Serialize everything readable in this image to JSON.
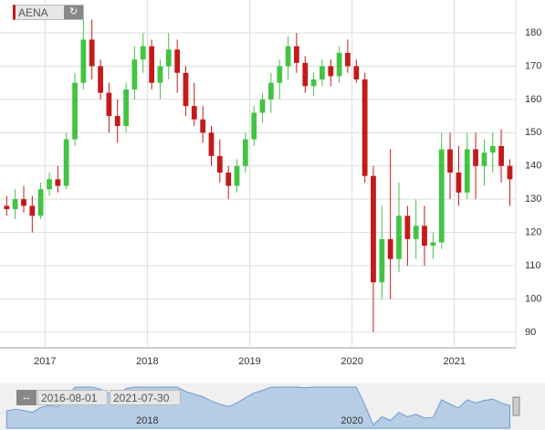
{
  "app": {
    "symbol": "AENA"
  },
  "chart_data": {
    "type": "candlestick",
    "x": [
      2016.625,
      2016.708,
      2016.792,
      2016.875,
      2016.958,
      2017.042,
      2017.125,
      2017.208,
      2017.292,
      2017.375,
      2017.458,
      2017.542,
      2017.625,
      2017.708,
      2017.792,
      2017.875,
      2017.958,
      2018.042,
      2018.125,
      2018.208,
      2018.292,
      2018.375,
      2018.458,
      2018.542,
      2018.625,
      2018.708,
      2018.792,
      2018.875,
      2018.958,
      2019.042,
      2019.125,
      2019.208,
      2019.292,
      2019.375,
      2019.458,
      2019.542,
      2019.625,
      2019.708,
      2019.792,
      2019.875,
      2019.958,
      2020.042,
      2020.125,
      2020.208,
      2020.292,
      2020.375,
      2020.458,
      2020.542,
      2020.625,
      2020.708,
      2020.792,
      2020.875,
      2020.958,
      2021.042,
      2021.125,
      2021.208,
      2021.292,
      2021.375,
      2021.458,
      2021.542
    ],
    "open": [
      128,
      127,
      130,
      128,
      125,
      133,
      136,
      134,
      148,
      165,
      178,
      170,
      162,
      155,
      152,
      163,
      172,
      176,
      165,
      170,
      175,
      168,
      158,
      154,
      150,
      143,
      138,
      134,
      140,
      148,
      156,
      160,
      165,
      170,
      176,
      171,
      164,
      166,
      170,
      167,
      174,
      170,
      166,
      137,
      105,
      118,
      112,
      125,
      118,
      122,
      116,
      117,
      145,
      138,
      132,
      145,
      140,
      144,
      146,
      140
    ],
    "high": [
      131,
      133,
      134,
      131,
      135,
      138,
      140,
      150,
      168,
      185,
      184,
      172,
      165,
      160,
      165,
      176,
      180,
      178,
      172,
      180,
      178,
      170,
      165,
      158,
      152,
      148,
      140,
      142,
      150,
      158,
      162,
      168,
      172,
      179,
      180,
      173,
      168,
      172,
      172,
      176,
      178,
      172,
      168,
      140,
      128,
      145,
      135,
      128,
      130,
      128,
      120,
      150,
      150,
      146,
      150,
      150,
      148,
      150,
      151,
      142
    ],
    "low": [
      125,
      124,
      126,
      120,
      124,
      131,
      132,
      133,
      146,
      163,
      166,
      160,
      150,
      147,
      150,
      160,
      168,
      163,
      160,
      166,
      162,
      155,
      152,
      147,
      140,
      135,
      130,
      132,
      138,
      146,
      153,
      156,
      160,
      166,
      168,
      162,
      161,
      164,
      164,
      165,
      168,
      165,
      135,
      90,
      100,
      100,
      108,
      110,
      112,
      110,
      112,
      115,
      130,
      128,
      130,
      130,
      134,
      138,
      135,
      128
    ],
    "close": [
      127,
      130,
      128,
      125,
      133,
      136,
      134,
      148,
      165,
      178,
      170,
      162,
      155,
      152,
      163,
      172,
      176,
      165,
      170,
      175,
      168,
      158,
      154,
      150,
      143,
      138,
      134,
      140,
      148,
      156,
      160,
      165,
      170,
      176,
      171,
      164,
      166,
      170,
      167,
      174,
      170,
      166,
      137,
      105,
      118,
      112,
      125,
      118,
      122,
      116,
      117,
      145,
      138,
      132,
      145,
      140,
      144,
      146,
      140,
      136
    ],
    "up_color": "#43c443",
    "down_color": "#c41a1a",
    "xlim": [
      2016.56,
      2021.6
    ],
    "ylim": [
      85.3,
      189.9
    ],
    "xticks": [
      2017,
      2018,
      2019,
      2020,
      2021
    ],
    "yticks": [
      90,
      100,
      110,
      120,
      130,
      140,
      150,
      160,
      170,
      180
    ],
    "grid": true
  },
  "navigator": {
    "from": "2016-08-01",
    "to": "2021-07-30",
    "xticks": [
      2018,
      2020
    ]
  }
}
